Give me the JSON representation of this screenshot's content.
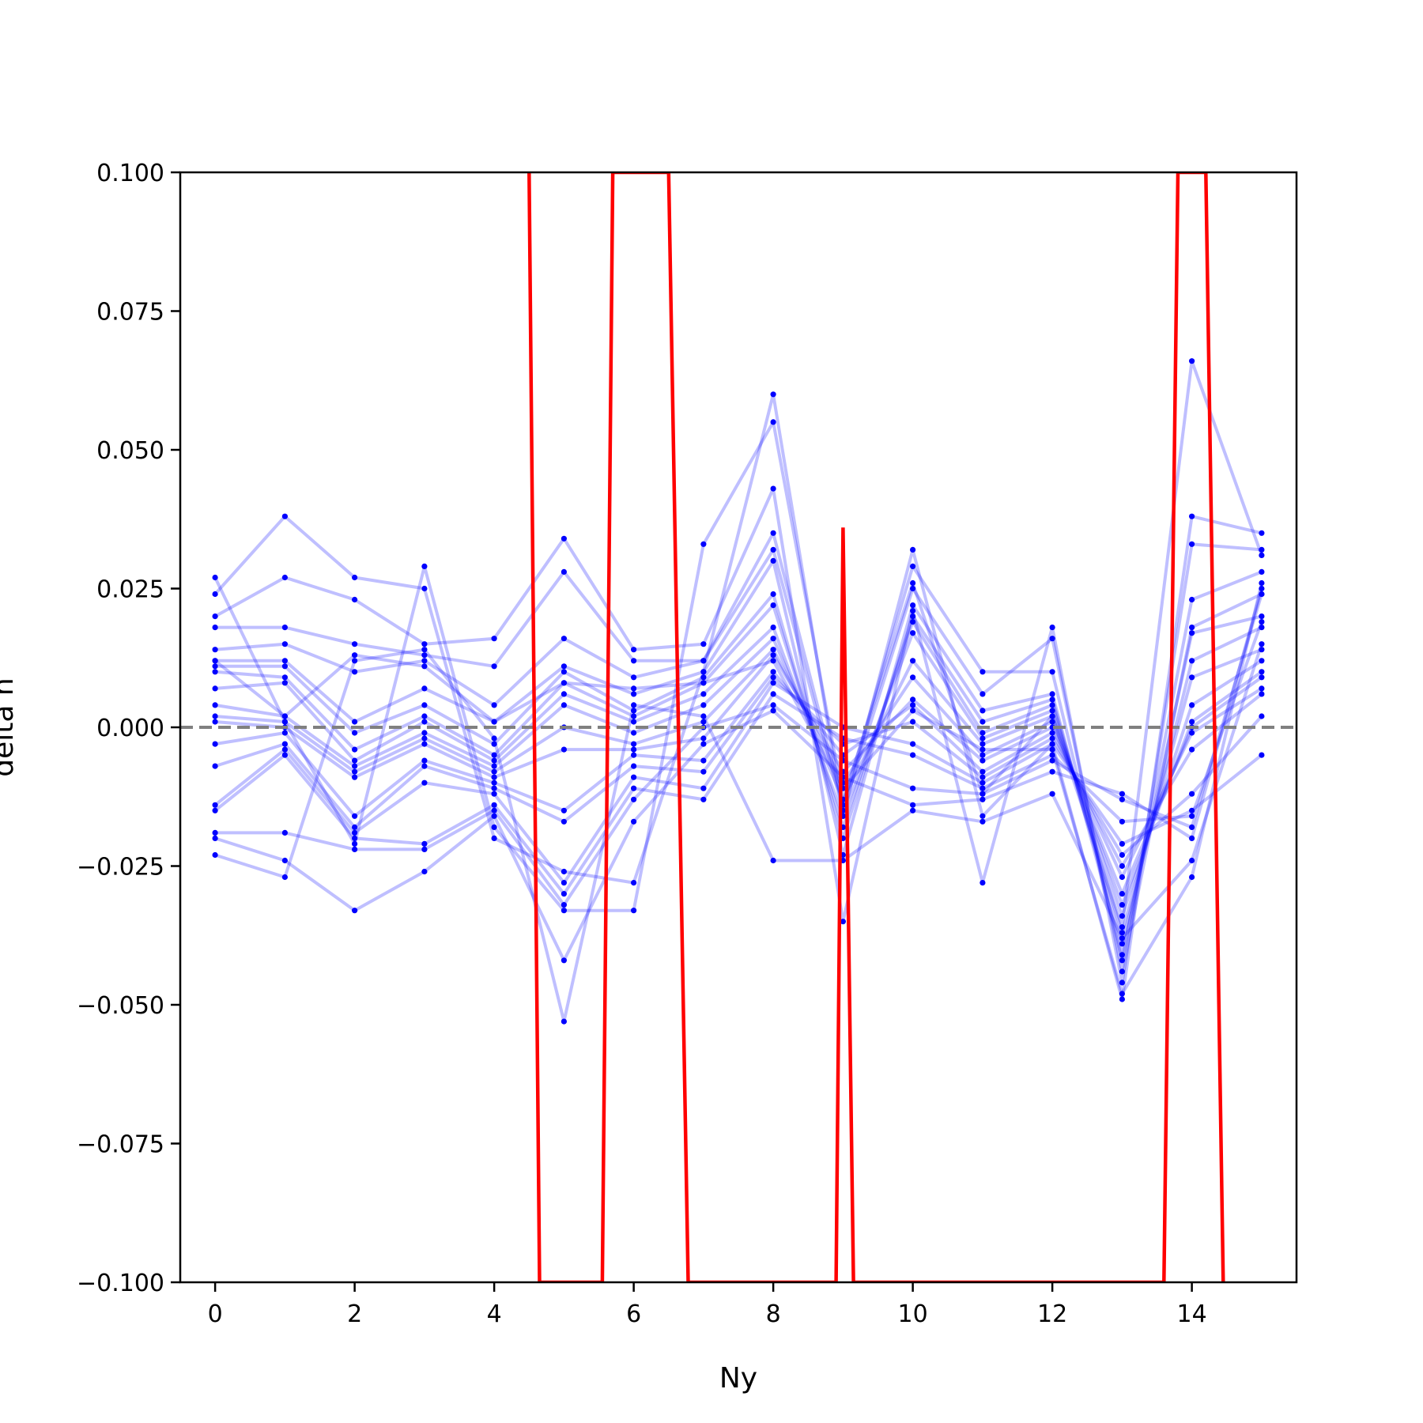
{
  "chart_data": {
    "type": "line",
    "xlabel": "Ny",
    "ylabel": "delta n",
    "xlim": [
      -0.5,
      15.5
    ],
    "ylim": [
      -0.1,
      0.1
    ],
    "x": [
      0,
      1,
      2,
      3,
      4,
      5,
      6,
      7,
      8,
      9,
      10,
      11,
      12,
      13,
      14,
      15
    ],
    "xticks": [
      0,
      2,
      4,
      6,
      8,
      10,
      12,
      14
    ],
    "xtick_labels": [
      "0",
      "2",
      "4",
      "6",
      "8",
      "10",
      "12",
      "14"
    ],
    "yticks": [
      0.1,
      0.075,
      0.05,
      0.025,
      0.0,
      -0.025,
      -0.05,
      -0.075,
      -0.1
    ],
    "ytick_labels": [
      "0.100",
      "0.075",
      "0.050",
      "0.025",
      "0.000",
      "−0.025",
      "−0.050",
      "−0.075",
      "−0.100"
    ],
    "grid": false,
    "legend": "none",
    "reference_line": {
      "y": 0.0,
      "style": "dashed",
      "color": "#808080"
    },
    "series_color": "#0000ff",
    "series_alpha": 0.25,
    "series": [
      {
        "values": [
          0.027,
          0.001,
          -0.021,
          0.029,
          -0.018,
          -0.033,
          -0.033,
          0.033,
          0.055,
          -0.013,
          0.026,
          -0.012,
          0.002,
          -0.036,
          0.066,
          0.031
        ]
      },
      {
        "values": [
          0.024,
          0.038,
          0.027,
          0.025,
          -0.02,
          -0.026,
          -0.028,
          0.01,
          0.06,
          -0.016,
          0.032,
          -0.016,
          -0.003,
          -0.049,
          0.038,
          0.035
        ]
      },
      {
        "values": [
          0.02,
          0.027,
          0.023,
          0.015,
          0.016,
          0.034,
          0.014,
          0.015,
          0.043,
          -0.035,
          0.021,
          -0.028,
          0.018,
          -0.046,
          0.033,
          0.032
        ]
      },
      {
        "values": [
          0.018,
          0.018,
          0.015,
          0.013,
          0.011,
          0.028,
          0.012,
          0.012,
          0.035,
          -0.014,
          0.029,
          0.01,
          0.01,
          -0.042,
          0.023,
          0.028
        ]
      },
      {
        "values": [
          0.014,
          0.015,
          0.01,
          0.012,
          0.004,
          0.016,
          0.009,
          0.012,
          0.032,
          -0.015,
          0.025,
          0.006,
          0.016,
          -0.044,
          0.018,
          0.024
        ]
      },
      {
        "values": [
          0.012,
          0.012,
          0.001,
          0.007,
          0.001,
          0.011,
          0.006,
          0.01,
          0.03,
          -0.023,
          0.022,
          0.003,
          0.006,
          -0.041,
          0.017,
          0.02
        ]
      },
      {
        "values": [
          0.011,
          0.011,
          -0.001,
          0.004,
          -0.003,
          0.01,
          0.003,
          0.009,
          0.024,
          -0.02,
          0.02,
          0.001,
          0.005,
          -0.039,
          0.012,
          0.018
        ]
      },
      {
        "values": [
          0.01,
          0.009,
          -0.004,
          0.002,
          -0.005,
          0.008,
          0.002,
          0.008,
          0.022,
          -0.018,
          0.019,
          -0.001,
          0.004,
          -0.037,
          0.009,
          0.014
        ]
      },
      {
        "values": [
          0.007,
          0.008,
          -0.006,
          0.001,
          -0.006,
          0.006,
          0.001,
          0.006,
          0.018,
          -0.016,
          0.017,
          -0.002,
          0.003,
          -0.034,
          0.004,
          0.012
        ]
      },
      {
        "values": [
          0.004,
          0.002,
          -0.007,
          -0.001,
          -0.007,
          0.004,
          -0.001,
          0.004,
          0.016,
          -0.013,
          0.012,
          -0.003,
          0.002,
          -0.032,
          0.001,
          0.01
        ]
      },
      {
        "values": [
          0.002,
          0.001,
          -0.008,
          -0.002,
          -0.008,
          0.0,
          -0.003,
          0.001,
          0.014,
          -0.01,
          0.009,
          -0.005,
          0.001,
          -0.03,
          0.0,
          0.009
        ]
      },
      {
        "values": [
          0.001,
          0.0,
          -0.009,
          -0.003,
          -0.009,
          -0.004,
          -0.004,
          -0.002,
          0.013,
          -0.008,
          0.005,
          -0.006,
          0.0,
          -0.027,
          -0.001,
          0.007
        ]
      },
      {
        "values": [
          -0.003,
          -0.001,
          -0.016,
          -0.006,
          -0.01,
          -0.015,
          -0.005,
          -0.006,
          0.01,
          -0.005,
          0.004,
          -0.008,
          -0.001,
          -0.025,
          -0.004,
          0.006
        ]
      },
      {
        "values": [
          -0.007,
          -0.003,
          -0.018,
          -0.007,
          -0.011,
          -0.017,
          -0.007,
          -0.008,
          0.009,
          -0.003,
          0.001,
          -0.009,
          -0.002,
          -0.023,
          -0.012,
          0.002
        ]
      },
      {
        "values": [
          -0.014,
          -0.004,
          -0.019,
          -0.01,
          -0.012,
          -0.028,
          -0.009,
          -0.011,
          0.008,
          0.0,
          -0.003,
          -0.01,
          -0.003,
          -0.021,
          -0.015,
          -0.005
        ]
      },
      {
        "values": [
          -0.015,
          -0.005,
          -0.02,
          -0.021,
          -0.014,
          -0.03,
          -0.011,
          -0.013,
          0.006,
          -0.002,
          -0.005,
          -0.011,
          -0.005,
          -0.017,
          -0.016,
          0.019
        ]
      },
      {
        "values": [
          -0.019,
          -0.019,
          -0.022,
          -0.022,
          -0.015,
          -0.032,
          -0.013,
          0.0,
          0.004,
          -0.006,
          -0.011,
          -0.012,
          -0.006,
          -0.013,
          -0.018,
          0.024
        ]
      },
      {
        "values": [
          -0.02,
          -0.024,
          -0.033,
          -0.026,
          -0.016,
          -0.042,
          -0.017,
          -0.003,
          0.003,
          -0.009,
          -0.014,
          -0.013,
          -0.008,
          -0.012,
          -0.02,
          0.025
        ]
      },
      {
        "values": [
          -0.023,
          -0.027,
          0.012,
          0.014,
          -0.002,
          -0.053,
          0.004,
          0.002,
          -0.024,
          -0.024,
          -0.015,
          -0.017,
          -0.012,
          -0.038,
          -0.024,
          0.015
        ]
      },
      {
        "values": [
          0.012,
          0.002,
          0.013,
          0.011,
          0.001,
          0.008,
          0.007,
          0.008,
          0.012,
          -0.011,
          0.003,
          -0.004,
          -0.004,
          -0.048,
          -0.027,
          0.026
        ]
      }
    ],
    "red_series": {
      "color": "#ff0000",
      "x": [
        4.5,
        4.65,
        5.55,
        5.7,
        6.5,
        6.78,
        8.9,
        9.0,
        9.15,
        13.6,
        13.8,
        14.2,
        14.45
      ],
      "values": [
        0.1,
        -0.1,
        -0.1,
        0.1,
        0.1,
        -0.1,
        -0.1,
        0.036,
        -0.1,
        -0.1,
        0.1,
        0.1,
        -0.1
      ]
    }
  }
}
